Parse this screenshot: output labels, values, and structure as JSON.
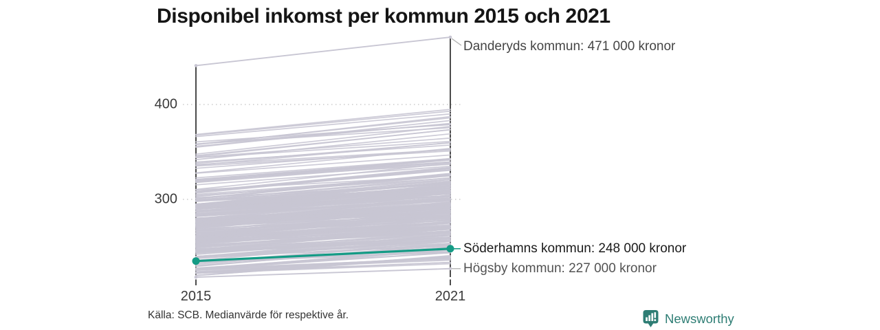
{
  "title": "Disponibel inkomst per kommun 2015 och 2021",
  "source_note": "Källa: SCB. Medianvärde för respektive år.",
  "logo": {
    "name": "Newsworthy"
  },
  "colors": {
    "accent_teal": "#149b85",
    "logo_teal": "#2e7d74",
    "background_line": "#c8c6d3",
    "axis": "#2b2b2b",
    "gridline": "#cccccc",
    "connector_gray": "#b5b5b5"
  },
  "chart_data": {
    "type": "line",
    "subtype": "slope-chart",
    "x": [
      2015,
      2021
    ],
    "x_labels": [
      "2015",
      "2021"
    ],
    "y_ticks": [
      400,
      300
    ],
    "y_tick_labels": [
      "400",
      "300"
    ],
    "y_axis_values_are_thousands_of_kronor": true,
    "ylim": [
      210,
      480
    ],
    "grid": "dotted-horizontal",
    "series": [
      {
        "name": "Danderyds kommun",
        "values": [
          441,
          471
        ],
        "value_2015_estimated": true,
        "label": "Danderyds kommun: 471 000 kronor",
        "highlight": false
      },
      {
        "name": "Söderhamns kommun",
        "values": [
          235,
          248
        ],
        "value_2015_estimated": true,
        "label": "Söderhamns kommun: 248 000 kronor",
        "highlight": true
      },
      {
        "name": "Högsby kommun",
        "values": [
          218,
          227
        ],
        "value_2015_estimated": true,
        "label": "Högsby kommun: 227 000 kronor",
        "highlight": false
      }
    ],
    "background_lines": {
      "description": "unlabeled gray lines for the remaining Swedish municipalities, values estimated from pixel extents",
      "seed": 20211207,
      "bands": [
        {
          "count": 210,
          "v2015_min": 219,
          "v2015_max": 296,
          "bias": 0.85
        },
        {
          "count": 42,
          "v2015_min": 288,
          "v2015_max": 322,
          "bias": 1.0
        },
        {
          "count": 20,
          "v2015_min": 318,
          "v2015_max": 362,
          "bias": 1.0
        },
        {
          "count": 6,
          "v2015_min": 355,
          "v2015_max": 372,
          "bias": 1.0
        }
      ],
      "growth_model": {
        "base": -2,
        "pct_of_2015": 0.05,
        "jitter": 14
      }
    }
  }
}
